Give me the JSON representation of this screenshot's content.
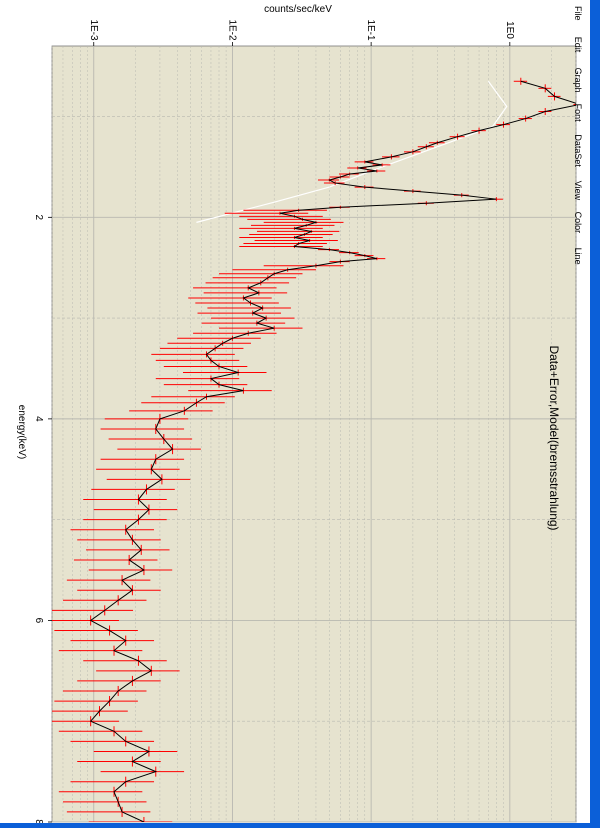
{
  "window": {
    "menu": [
      "File",
      "Edit",
      "Graph",
      "Font",
      "DataSet",
      "View",
      "Color",
      "Line"
    ]
  },
  "colors": {
    "plot_background": "#e6e3cf",
    "data_color": "#ff0000",
    "model_color": "#000000",
    "background_curve_color": "#ffffff",
    "grid_color": "#b8b8b0",
    "frame_color": "#0b5fd8"
  },
  "chart_data": {
    "type": "line",
    "title": "Data+Error,Model(bremsstrahlung)",
    "xlabel": "energy(keV)",
    "ylabel": "counts/sec/keV",
    "xlim": [
      0.3,
      8.0
    ],
    "ylim": [
      0.0005,
      3.0
    ],
    "y_scale": "log",
    "grid": true,
    "x_ticks": [
      2,
      4,
      6,
      8
    ],
    "x_tick_labels": [
      "2",
      "4",
      "6",
      "8"
    ],
    "y_ticks": [
      0.001,
      0.01,
      0.1,
      1.0
    ],
    "y_tick_labels": [
      "1E-3",
      "1E-2",
      "1E-1",
      "1E0"
    ],
    "series": [
      {
        "role": "data",
        "x": [
          0.65,
          0.72,
          0.8,
          0.88,
          0.95,
          1.02,
          1.08,
          1.14,
          1.2,
          1.26,
          1.3,
          1.35,
          1.4,
          1.45,
          1.48,
          1.51,
          1.54,
          1.57,
          1.6,
          1.63,
          1.66,
          1.7,
          1.74,
          1.78,
          1.82,
          1.86,
          1.9,
          1.93,
          1.96,
          1.99,
          2.02,
          2.05,
          2.08,
          2.11,
          2.14,
          2.17,
          2.2,
          2.23,
          2.26,
          2.29,
          2.32,
          2.35,
          2.38,
          2.41,
          2.44,
          2.48,
          2.52,
          2.56,
          2.6,
          2.65,
          2.7,
          2.75,
          2.8,
          2.85,
          2.9,
          2.95,
          3.0,
          3.05,
          3.1,
          3.15,
          3.2,
          3.25,
          3.3,
          3.36,
          3.42,
          3.48,
          3.54,
          3.6,
          3.66,
          3.72,
          3.78,
          3.84,
          3.92,
          4.0,
          4.1,
          4.2,
          4.3,
          4.4,
          4.5,
          4.6,
          4.7,
          4.8,
          4.9,
          5.0,
          5.1,
          5.2,
          5.3,
          5.4,
          5.5,
          5.6,
          5.7,
          5.8,
          5.9,
          6.0,
          6.1,
          6.2,
          6.3,
          6.4,
          6.5,
          6.6,
          6.7,
          6.8,
          6.9,
          7.0,
          7.1,
          7.2,
          7.3,
          7.4,
          7.5,
          7.6,
          7.7,
          7.8,
          7.9,
          8.0
        ],
        "y": [
          1.2,
          1.8,
          2.1,
          3.2,
          1.8,
          1.3,
          0.9,
          0.6,
          0.42,
          0.3,
          0.25,
          0.2,
          0.14,
          0.09,
          0.12,
          0.08,
          0.11,
          0.07,
          0.06,
          0.05,
          0.055,
          0.09,
          0.2,
          0.45,
          0.8,
          0.25,
          0.06,
          0.03,
          0.022,
          0.028,
          0.032,
          0.04,
          0.034,
          0.028,
          0.037,
          0.033,
          0.028,
          0.036,
          0.03,
          0.028,
          0.05,
          0.07,
          0.09,
          0.11,
          0.06,
          0.04,
          0.025,
          0.02,
          0.018,
          0.016,
          0.013,
          0.0155,
          0.012,
          0.0135,
          0.0165,
          0.014,
          0.0175,
          0.015,
          0.02,
          0.013,
          0.01,
          0.0085,
          0.0075,
          0.0065,
          0.007,
          0.008,
          0.011,
          0.007,
          0.008,
          0.012,
          0.0065,
          0.0055,
          0.0045,
          0.003,
          0.0028,
          0.0032,
          0.0037,
          0.0028,
          0.0026,
          0.0031,
          0.0024,
          0.0021,
          0.0025,
          0.0021,
          0.0017,
          0.0019,
          0.0022,
          0.0018,
          0.0023,
          0.0016,
          0.0019,
          0.0015,
          0.0012,
          0.00095,
          0.0013,
          0.0017,
          0.0014,
          0.0021,
          0.0026,
          0.0019,
          0.0015,
          0.0013,
          0.0011,
          0.00095,
          0.0014,
          0.0017,
          0.0025,
          0.0019,
          0.0028,
          0.0017,
          0.0014,
          0.0015,
          0.0016,
          0.0023
        ]
      },
      {
        "role": "model",
        "x": [
          0.65,
          0.72,
          0.8,
          0.88,
          0.95,
          1.02,
          1.08,
          1.14,
          1.2,
          1.26,
          1.3,
          1.35,
          1.4,
          1.45,
          1.48,
          1.51,
          1.54,
          1.57,
          1.6,
          1.63,
          1.66,
          1.7,
          1.74,
          1.78,
          1.82,
          1.86,
          1.9,
          1.93,
          1.96,
          1.99,
          2.02,
          2.05,
          2.08,
          2.11,
          2.14,
          2.17,
          2.2,
          2.23,
          2.26,
          2.29,
          2.32,
          2.35,
          2.38,
          2.41,
          2.44,
          2.48,
          2.52,
          2.56,
          2.6,
          2.65,
          2.7,
          2.75,
          2.8,
          2.85,
          2.9,
          2.95,
          3.0,
          3.05,
          3.1,
          3.15,
          3.2,
          3.25,
          3.3,
          3.36,
          3.42,
          3.48,
          3.54,
          3.6,
          3.66,
          3.72,
          3.78,
          3.84,
          3.92,
          4.0,
          4.1,
          4.2,
          4.3,
          4.4,
          4.5,
          4.6,
          4.7,
          4.8,
          4.9,
          5.0,
          5.1,
          5.2,
          5.3,
          5.4,
          5.5,
          5.6,
          5.7,
          5.8,
          5.9,
          6.0,
          6.1,
          6.2,
          6.3,
          6.4,
          6.5,
          6.6,
          6.7,
          6.8,
          6.9,
          7.0,
          7.1,
          7.2,
          7.3,
          7.4,
          7.5,
          7.6,
          7.7,
          7.8,
          7.9,
          8.0
        ],
        "y": [
          1.2,
          1.8,
          2.1,
          3.2,
          1.8,
          1.3,
          0.9,
          0.6,
          0.42,
          0.3,
          0.25,
          0.2,
          0.14,
          0.09,
          0.12,
          0.08,
          0.11,
          0.07,
          0.06,
          0.05,
          0.055,
          0.09,
          0.2,
          0.45,
          0.8,
          0.25,
          0.06,
          0.03,
          0.022,
          0.028,
          0.032,
          0.04,
          0.034,
          0.028,
          0.037,
          0.033,
          0.028,
          0.036,
          0.03,
          0.028,
          0.05,
          0.07,
          0.09,
          0.11,
          0.06,
          0.04,
          0.025,
          0.02,
          0.018,
          0.016,
          0.013,
          0.0155,
          0.012,
          0.0135,
          0.0165,
          0.014,
          0.0175,
          0.015,
          0.02,
          0.013,
          0.01,
          0.0085,
          0.0075,
          0.0065,
          0.007,
          0.008,
          0.011,
          0.007,
          0.008,
          0.012,
          0.0065,
          0.0055,
          0.0045,
          0.003,
          0.0028,
          0.0032,
          0.0037,
          0.0028,
          0.0026,
          0.0031,
          0.0024,
          0.0021,
          0.0025,
          0.0021,
          0.0017,
          0.0019,
          0.0022,
          0.0018,
          0.0023,
          0.0016,
          0.0019,
          0.0015,
          0.0012,
          0.00095,
          0.0013,
          0.0017,
          0.0014,
          0.0021,
          0.0026,
          0.0019,
          0.0015,
          0.0013,
          0.0011,
          0.00095,
          0.0014,
          0.0017,
          0.0025,
          0.0019,
          0.0028,
          0.0017,
          0.0014,
          0.0015,
          0.0016,
          0.0023
        ]
      },
      {
        "role": "background",
        "x": [
          0.65,
          0.9,
          1.1,
          1.3,
          1.5,
          1.7,
          1.85,
          2.05
        ],
        "y": [
          0.7,
          0.95,
          0.75,
          0.3,
          0.12,
          0.05,
          0.02,
          0.0055
        ]
      }
    ]
  }
}
